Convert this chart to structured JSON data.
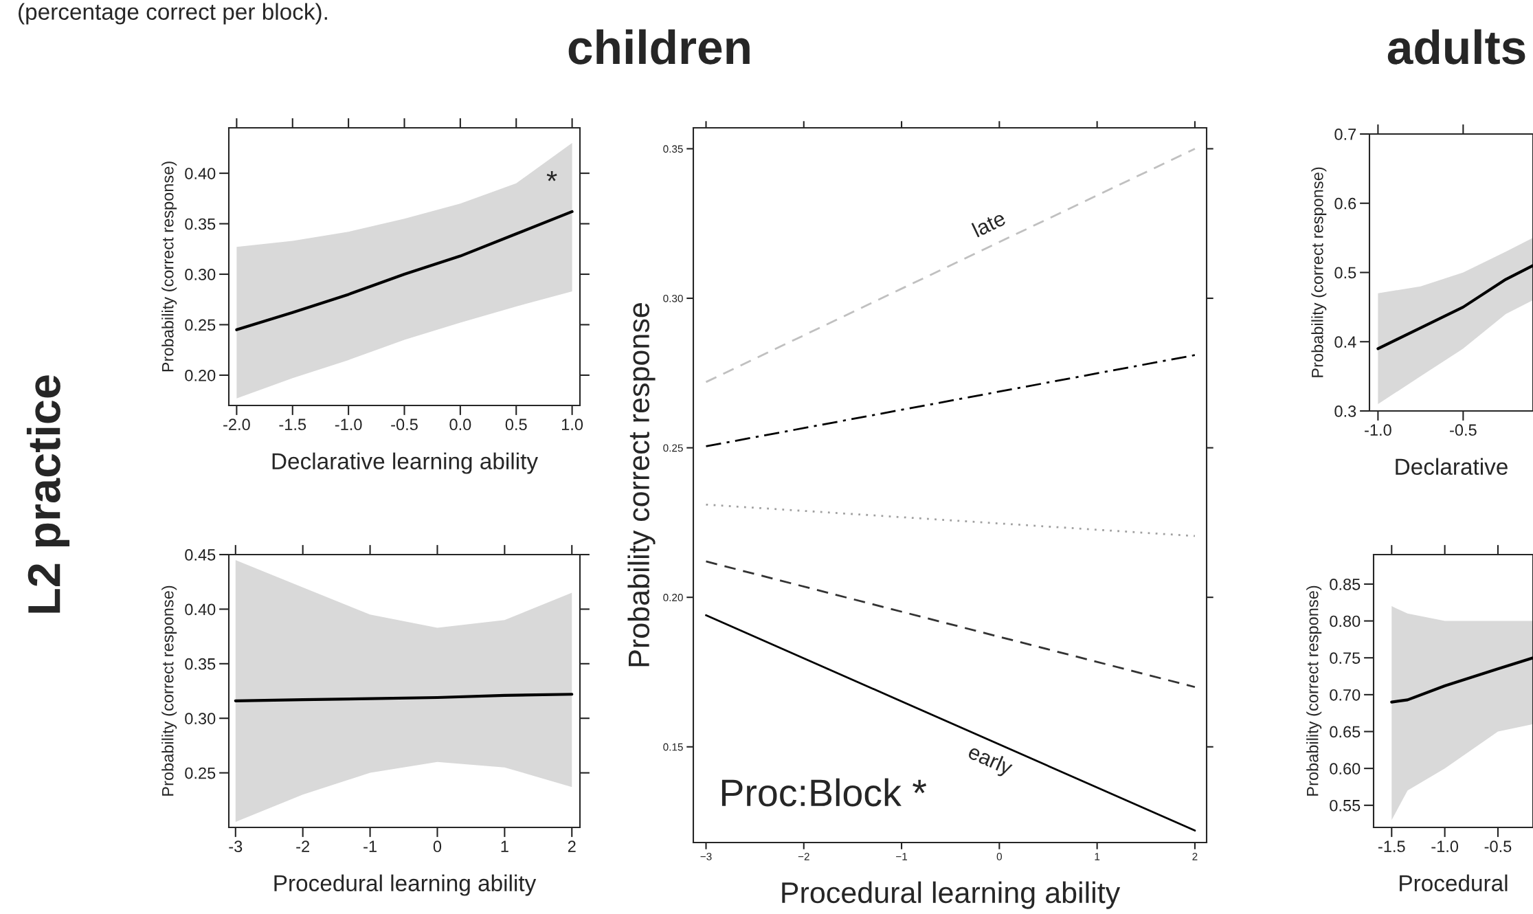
{
  "chart_data": [
    {
      "type": "line",
      "title": "children",
      "annotations": [
        "(percentage correct per block).",
        "L2 practice",
        "*"
      ],
      "xlabel": "Declarative learning ability",
      "ylabel": "Probability (correct response)",
      "xlim": [
        -2.07,
        1.07
      ],
      "ylim": [
        0.17,
        0.445
      ],
      "xticks": [
        {
          "value": -2,
          "label": "-2.0"
        },
        {
          "value": -1.5,
          "label": "-1.5"
        },
        {
          "value": -1,
          "label": "-1.0"
        },
        {
          "value": -0.5,
          "label": "-0.5"
        },
        {
          "value": 0,
          "label": "0.0"
        },
        {
          "value": 0.5,
          "label": "0.5"
        },
        {
          "value": 1,
          "label": "1.0"
        }
      ],
      "yticks": [
        {
          "value": 0.2,
          "label": "0.20"
        },
        {
          "value": 0.25,
          "label": "0.25"
        },
        {
          "value": 0.3,
          "label": "0.30"
        },
        {
          "value": 0.35,
          "label": "0.35"
        },
        {
          "value": 0.4,
          "label": "0.40"
        }
      ],
      "series": [
        {
          "color": "#000000",
          "line_style": "solid",
          "x": [
            -2,
            -1.5,
            -1,
            -0.5,
            0,
            0.5,
            1
          ],
          "values": [
            0.245,
            0.262,
            0.28,
            0.3,
            0.318,
            0.34,
            0.362
          ],
          "lower": [
            0.177,
            0.197,
            0.215,
            0.235,
            0.252,
            0.268,
            0.283
          ],
          "upper": [
            0.327,
            0.333,
            0.342,
            0.355,
            0.37,
            0.39,
            0.43
          ]
        }
      ]
    },
    {
      "type": "line",
      "xlabel": "Procedural learning ability",
      "ylabel": "Probability (correct response)",
      "xlim": [
        -3.1,
        2.12
      ],
      "ylim": [
        0.2,
        0.45
      ],
      "xticks": [
        -3,
        -2,
        -1,
        0,
        1,
        2
      ],
      "yticks": [
        {
          "value": 0.25,
          "label": "0.25"
        },
        {
          "value": 0.3,
          "label": "0.30"
        },
        {
          "value": 0.35,
          "label": "0.35"
        },
        {
          "value": 0.4,
          "label": "0.40"
        },
        {
          "value": 0.45,
          "label": "0.45"
        }
      ],
      "series": [
        {
          "color": "#000000",
          "line_style": "solid",
          "x": [
            -3,
            -2,
            -1,
            0,
            1,
            2
          ],
          "values": [
            0.316,
            0.317,
            0.318,
            0.319,
            0.321,
            0.322
          ],
          "lower": [
            0.205,
            0.23,
            0.25,
            0.26,
            0.255,
            0.237
          ],
          "upper": [
            0.445,
            0.42,
            0.395,
            0.383,
            0.39,
            0.415
          ]
        }
      ]
    },
    {
      "type": "line",
      "annotations": [
        "Proc:Block *"
      ],
      "xlabel": "Procedural learning ability",
      "ylabel": "Probability correct response",
      "xlim": [
        -3.13,
        2.12
      ],
      "ylim": [
        0.118,
        0.357
      ],
      "xticks": [
        {
          "value": -3,
          "label": "−3"
        },
        {
          "value": -2,
          "label": "−2"
        },
        {
          "value": -1,
          "label": "−1"
        },
        {
          "value": 0,
          "label": "0"
        },
        {
          "value": 1,
          "label": "1"
        },
        {
          "value": 2,
          "label": "2"
        }
      ],
      "yticks": [
        {
          "value": 0.15,
          "label": "0.15"
        },
        {
          "value": 0.2,
          "label": "0.20"
        },
        {
          "value": 0.25,
          "label": "0.25"
        },
        {
          "value": 0.3,
          "label": "0.30"
        },
        {
          "value": 0.35,
          "label": "0.35"
        }
      ],
      "series": [
        {
          "name": "late",
          "color": "#c0c0c0",
          "line_style": "dashed",
          "x": [
            -3,
            2
          ],
          "values": [
            0.272,
            0.35
          ]
        },
        {
          "color": "#000000",
          "line_style": "dashdot",
          "x": [
            -3,
            2
          ],
          "values": [
            0.2505,
            0.281
          ]
        },
        {
          "color": "#a0a0a0",
          "line_style": "dotted",
          "x": [
            -3,
            2
          ],
          "values": [
            0.231,
            0.2205
          ]
        },
        {
          "color": "#333333",
          "line_style": "dashed",
          "x": [
            -3,
            2
          ],
          "values": [
            0.212,
            0.17
          ]
        },
        {
          "name": "early",
          "color": "#000000",
          "line_style": "solid",
          "x": [
            -3,
            2
          ],
          "values": [
            0.194,
            0.122
          ]
        }
      ]
    },
    {
      "type": "line",
      "title": "adults",
      "xlabel": "Declarative",
      "ylabel": "Probability (correct response)",
      "xlim": [
        -1.05,
        -0.09
      ],
      "ylim": [
        0.3,
        0.7
      ],
      "xticks": [
        {
          "value": -1,
          "label": "-1.0"
        },
        {
          "value": -0.5,
          "label": "-0.5"
        }
      ],
      "yticks": [
        0.3,
        0.4,
        0.5,
        0.6,
        0.7
      ],
      "series": [
        {
          "color": "#000000",
          "line_style": "solid",
          "x": [
            -1,
            -0.75,
            -0.5,
            -0.25,
            -0.09
          ],
          "values": [
            0.39,
            0.42,
            0.45,
            0.49,
            0.51
          ],
          "lower": [
            0.31,
            0.35,
            0.39,
            0.44,
            0.46
          ],
          "upper": [
            0.47,
            0.48,
            0.5,
            0.53,
            0.55
          ]
        }
      ]
    },
    {
      "type": "line",
      "xlabel": "Procedural",
      "ylabel": "Probability (correct response)",
      "xlim": [
        -1.67,
        -0.17
      ],
      "ylim": [
        0.52,
        0.89
      ],
      "xticks": [
        {
          "value": -1.5,
          "label": "-1.5"
        },
        {
          "value": -1,
          "label": "-1.0"
        },
        {
          "value": -0.5,
          "label": "-0.5"
        }
      ],
      "yticks": [
        {
          "value": 0.55,
          "label": "0.55"
        },
        {
          "value": 0.6,
          "label": "0.60"
        },
        {
          "value": 0.65,
          "label": "0.65"
        },
        {
          "value": 0.7,
          "label": "0.70"
        },
        {
          "value": 0.75,
          "label": "0.75"
        },
        {
          "value": 0.8,
          "label": "0.80"
        },
        {
          "value": 0.85,
          "label": "0.85"
        }
      ],
      "series": [
        {
          "color": "#000000",
          "line_style": "solid",
          "x": [
            -1.5,
            -1.35,
            -1,
            -0.5,
            -0.17
          ],
          "values": [
            0.69,
            0.693,
            0.712,
            0.735,
            0.75
          ],
          "lower": [
            0.53,
            0.57,
            0.6,
            0.65,
            0.66
          ],
          "upper": [
            0.82,
            0.81,
            0.8,
            0.8,
            0.8
          ]
        }
      ]
    }
  ]
}
